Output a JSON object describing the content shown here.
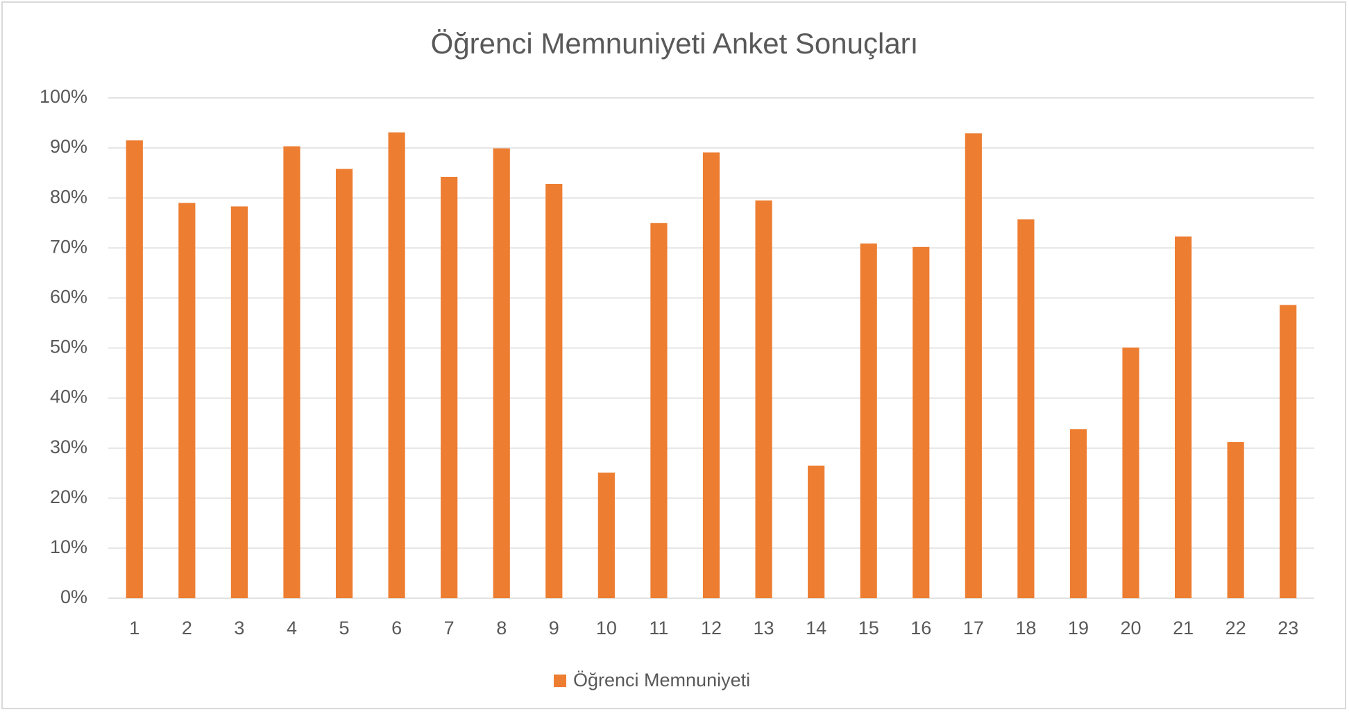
{
  "chart_data": {
    "type": "bar",
    "title": "Öğrenci Memnuniyeti Anket Sonuçları",
    "categories": [
      "1",
      "2",
      "3",
      "4",
      "5",
      "6",
      "7",
      "8",
      "9",
      "10",
      "11",
      "12",
      "13",
      "14",
      "15",
      "16",
      "17",
      "18",
      "19",
      "20",
      "21",
      "22",
      "23"
    ],
    "series": [
      {
        "name": "Öğrenci Memnuniyeti",
        "color": "#ed7d31",
        "values": [
          91.5,
          79.0,
          78.3,
          90.3,
          85.8,
          93.1,
          84.2,
          89.9,
          82.8,
          25.1,
          75.0,
          89.1,
          79.5,
          26.5,
          70.9,
          70.2,
          92.9,
          75.7,
          33.8,
          50.1,
          72.3,
          31.2,
          58.6
        ]
      }
    ],
    "ylim": [
      0,
      100
    ],
    "yticks": [
      {
        "value": 0,
        "label": "0%"
      },
      {
        "value": 10,
        "label": "10%"
      },
      {
        "value": 20,
        "label": "20%"
      },
      {
        "value": 30,
        "label": "30%"
      },
      {
        "value": 40,
        "label": "40%"
      },
      {
        "value": 50,
        "label": "50%"
      },
      {
        "value": 60,
        "label": "60%"
      },
      {
        "value": 70,
        "label": "70%"
      },
      {
        "value": 80,
        "label": "80%"
      },
      {
        "value": 90,
        "label": "90%"
      },
      {
        "value": 100,
        "label": "100%"
      }
    ],
    "grid": true,
    "legend": "bottom"
  }
}
